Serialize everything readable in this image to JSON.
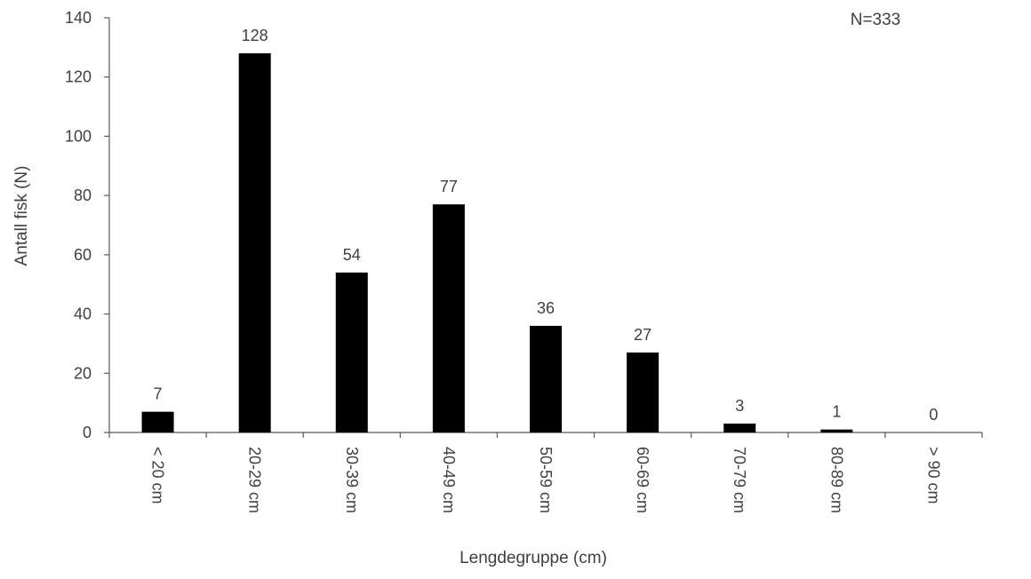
{
  "chart_data": {
    "type": "bar",
    "categories": [
      "< 20 cm",
      "20-29 cm",
      "30-39 cm",
      "40-49 cm",
      "50-59 cm",
      "60-69 cm",
      "70-79 cm",
      "80-89 cm",
      "> 90 cm"
    ],
    "values": [
      7,
      128,
      54,
      77,
      36,
      27,
      3,
      1,
      0
    ],
    "data_labels": [
      "7",
      "128",
      "54",
      "77",
      "36",
      "27",
      "3",
      "1",
      "0"
    ],
    "xlabel": "Lengdegruppe (cm)",
    "ylabel": "Antall fisk (N)",
    "ylim": [
      0,
      140
    ],
    "yticks": [
      0,
      20,
      40,
      60,
      80,
      100,
      120,
      140
    ],
    "annotation": "N=333",
    "bar_color": "#000000",
    "grid": false,
    "legend": "none"
  }
}
